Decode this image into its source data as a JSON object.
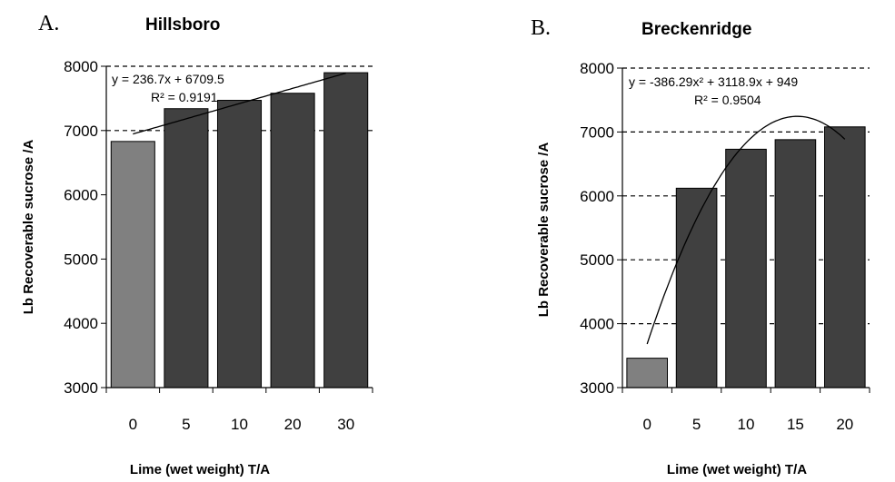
{
  "chart_data": [
    {
      "type": "bar",
      "panel_label": "A.",
      "title": "Hillsboro",
      "xlabel": "Lime (wet weight) T/A",
      "ylabel": "Lb Recoverable sucrose /A",
      "categories": [
        "0",
        "5",
        "10",
        "20",
        "30"
      ],
      "values": [
        6830,
        7340,
        7470,
        7580,
        7900
      ],
      "ylim": [
        3000,
        8000
      ],
      "yticks": [
        "3000",
        "4000",
        "5000",
        "6000",
        "7000",
        "8000"
      ],
      "grid": "dashed horizontal at 7000 and 8000",
      "bar_colors": [
        "#808080",
        "#404040",
        "#404040",
        "#404040",
        "#404040"
      ],
      "trendline": {
        "type": "linear",
        "coefficients": [
          236.7,
          6709.5
        ],
        "equation": "y = 236.7x + 6709.5",
        "r_squared": "R² = 0.9191"
      }
    },
    {
      "type": "bar",
      "panel_label": "B.",
      "title": "Breckenridge",
      "xlabel": "Lime (wet weight) T/A",
      "ylabel": "Lb Recoverable sucrose /A",
      "categories": [
        "0",
        "5",
        "10",
        "15",
        "20"
      ],
      "values": [
        3460,
        6120,
        6730,
        6880,
        7080
      ],
      "ylim": [
        3000,
        8000
      ],
      "yticks": [
        "3000",
        "4000",
        "5000",
        "6000",
        "7000",
        "8000"
      ],
      "grid": "dashed horizontal at 4000, 5000, 6000, 7000 and 8000",
      "bar_colors": [
        "#808080",
        "#404040",
        "#404040",
        "#404040",
        "#404040"
      ],
      "trendline": {
        "type": "polynomial",
        "coefficients": [
          -386.29,
          3118.9,
          949
        ],
        "equation": "y = -386.29x² + 3118.9x + 949",
        "r_squared": "R² = 0.9504"
      }
    }
  ]
}
